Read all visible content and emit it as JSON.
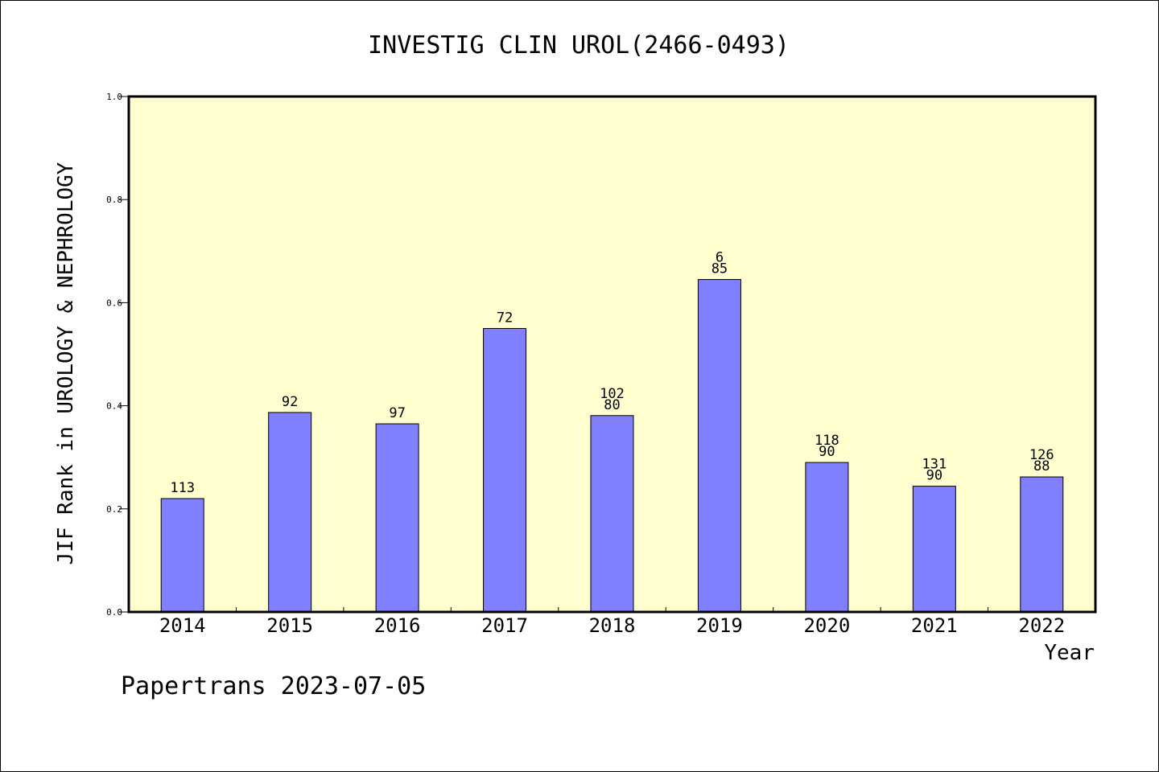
{
  "chart_data": {
    "type": "bar",
    "title": "INVESTIG CLIN UROL(2466-0493)",
    "xlabel": "Year",
    "ylabel": "JIF Rank in UROLOGY & NEPHROLOGY",
    "categories": [
      "2014",
      "2015",
      "2016",
      "2017",
      "2018",
      "2019",
      "2020",
      "2021",
      "2022"
    ],
    "values": [
      0.22,
      0.387,
      0.365,
      0.55,
      0.381,
      0.645,
      0.29,
      0.244,
      0.262
    ],
    "bar_labels": [
      [
        "113"
      ],
      [
        "92"
      ],
      [
        "97"
      ],
      [
        "72"
      ],
      [
        "102",
        "80"
      ],
      [
        "6",
        "85"
      ],
      [
        "118",
        "90"
      ],
      [
        "131",
        "90"
      ],
      [
        "126",
        "88"
      ]
    ],
    "yticks": [
      "0.0",
      "0.2",
      "0.4",
      "0.6",
      "0.8",
      "1.0"
    ],
    "ylim": [
      0,
      1
    ],
    "grid": false,
    "colors": {
      "bar": "#8080ff",
      "plot_background": "#ffffd0",
      "axis": "#000000"
    }
  },
  "footer": {
    "text": "Papertrans 2023-07-05"
  }
}
